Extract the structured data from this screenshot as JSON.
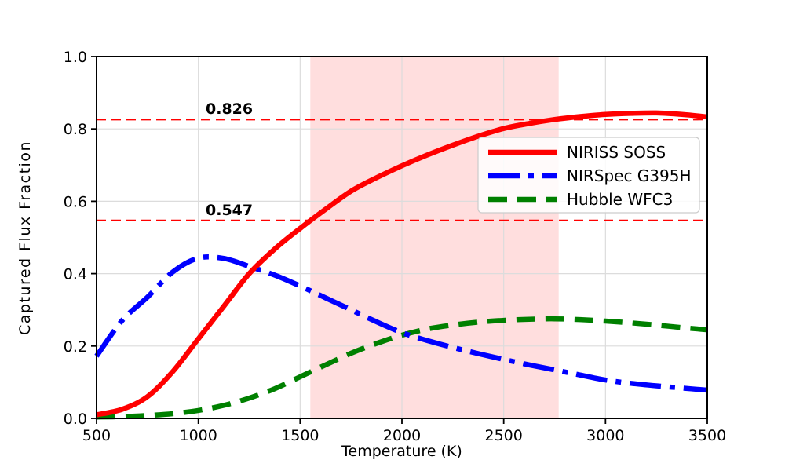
{
  "chart_data": {
    "type": "line",
    "title": "",
    "xlabel": "Temperature (K)",
    "ylabel": "Captured Flux Fraction",
    "xlim": [
      500,
      3500
    ],
    "ylim": [
      0.0,
      1.0
    ],
    "grid": true,
    "x_ticks": [
      500,
      1000,
      1500,
      2000,
      2500,
      3000,
      3500
    ],
    "x_tick_labels": [
      "500",
      "1000",
      "1500",
      "2000",
      "2500",
      "3000",
      "3500"
    ],
    "y_ticks": [
      0.0,
      0.2,
      0.4,
      0.6,
      0.8,
      1.0
    ],
    "y_tick_labels": [
      "0.0",
      "0.2",
      "0.4",
      "0.6",
      "0.8",
      "1.0"
    ],
    "x": [
      500,
      625,
      750,
      875,
      1000,
      1125,
      1250,
      1375,
      1500,
      1625,
      1750,
      1875,
      2000,
      2125,
      2250,
      2375,
      2500,
      2625,
      2750,
      2875,
      3000,
      3125,
      3250,
      3375,
      3500
    ],
    "series": [
      {
        "name": "NIRISS SOSS",
        "color": "#ff0000",
        "style": "solid",
        "values": [
          0.01,
          0.025,
          0.06,
          0.13,
          0.22,
          0.31,
          0.4,
          0.468,
          0.525,
          0.578,
          0.628,
          0.665,
          0.698,
          0.728,
          0.755,
          0.78,
          0.801,
          0.815,
          0.826,
          0.834,
          0.84,
          0.843,
          0.844,
          0.84,
          0.833
        ]
      },
      {
        "name": "NIRSpec G395H",
        "color": "#0000ff",
        "style": "dashdot",
        "values": [
          0.172,
          0.27,
          0.335,
          0.405,
          0.443,
          0.442,
          0.42,
          0.396,
          0.366,
          0.333,
          0.3,
          0.267,
          0.237,
          0.215,
          0.196,
          0.179,
          0.163,
          0.148,
          0.134,
          0.12,
          0.106,
          0.097,
          0.09,
          0.084,
          0.078
        ]
      },
      {
        "name": "Hubble WFC3",
        "color": "#008000",
        "style": "dashed",
        "values": [
          0.004,
          0.005,
          0.008,
          0.013,
          0.022,
          0.036,
          0.056,
          0.082,
          0.115,
          0.148,
          0.18,
          0.207,
          0.23,
          0.247,
          0.258,
          0.266,
          0.271,
          0.274,
          0.275,
          0.273,
          0.269,
          0.264,
          0.258,
          0.251,
          0.245
        ]
      }
    ],
    "reference_lines": [
      {
        "y": 0.826,
        "label": "0.826",
        "color": "#ff0000",
        "style": "dashed"
      },
      {
        "y": 0.547,
        "label": "0.547",
        "color": "#ff0000",
        "style": "dashed"
      }
    ],
    "shaded_region": {
      "x_start": 1550,
      "x_end": 2770,
      "color": "#ff0000",
      "alpha": 0.13
    },
    "legend": {
      "position": "center right",
      "labels": [
        "NIRISS SOSS",
        "NIRSpec G395H",
        "Hubble WFC3"
      ]
    },
    "colors": {
      "grid": "#dcdcdc",
      "axes": "#000000",
      "text": "#000000"
    }
  }
}
